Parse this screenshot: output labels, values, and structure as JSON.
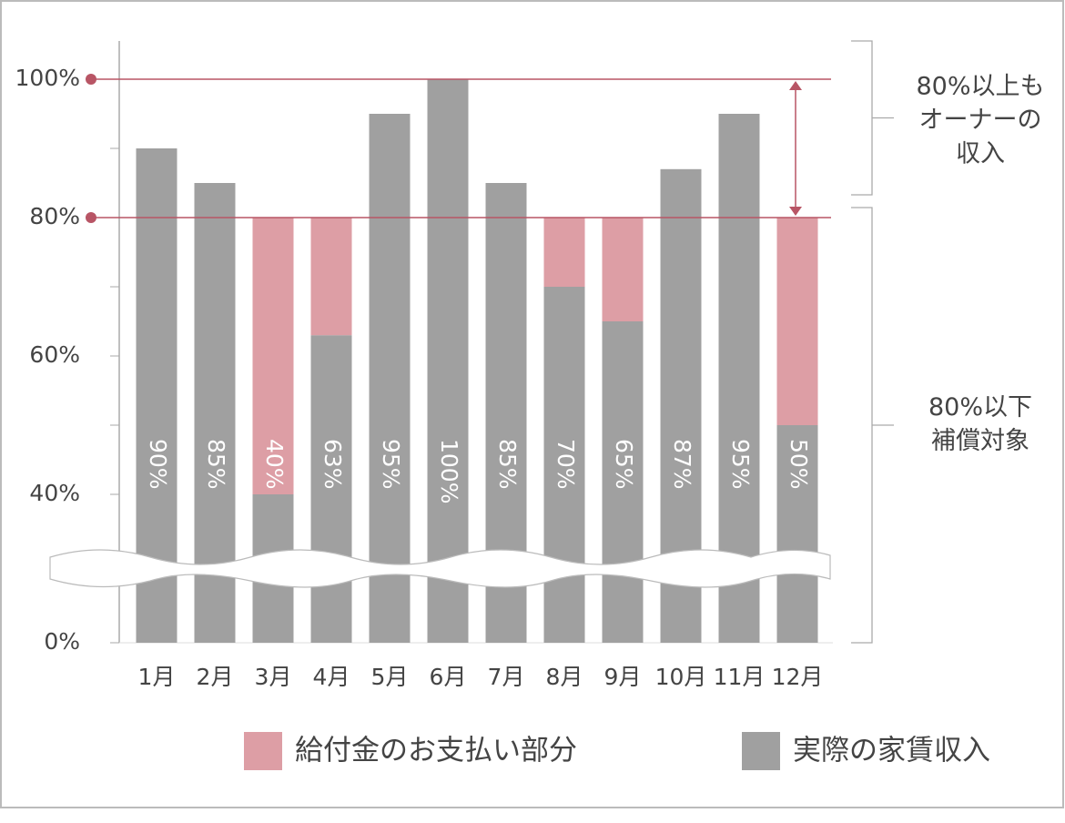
{
  "chart_data": {
    "type": "stacked_bar",
    "categories": [
      "1月",
      "2月",
      "3月",
      "4月",
      "5月",
      "6月",
      "7月",
      "8月",
      "9月",
      "10月",
      "11月",
      "12月"
    ],
    "series": [
      {
        "name": "給付金のお支払い部分",
        "color": "#dd9ea5",
        "values": [
          null,
          null,
          40,
          17,
          null,
          null,
          null,
          10,
          15,
          null,
          null,
          30
        ]
      },
      {
        "name": "実際の家賃収入",
        "color": "#a0a0a0",
        "values": [
          90,
          85,
          40,
          63,
          95,
          100,
          85,
          70,
          65,
          87,
          95,
          50
        ],
        "value_labels": [
          "90%",
          "85%",
          "40%",
          "63%",
          "95%",
          "100%",
          "85%",
          "70%",
          "65%",
          "87%",
          "95%",
          "50%"
        ]
      }
    ],
    "ylim": [
      0,
      100
    ],
    "y_break": [
      0,
      40
    ],
    "yticks": [
      {
        "value": 0,
        "label": "0%"
      },
      {
        "value": 40,
        "label": "40%"
      },
      {
        "value": 60,
        "label": "60%"
      },
      {
        "value": 80,
        "label": "80%"
      },
      {
        "value": 100,
        "label": "100%"
      }
    ],
    "minor_yticks": [
      50,
      70,
      90
    ],
    "reference_lines": [
      80,
      100
    ],
    "reference_color": "#b85565",
    "annotations": [
      {
        "lines": [
          "80%以上も",
          "オーナーの",
          "収入"
        ],
        "range": [
          80,
          100
        ]
      },
      {
        "lines": [
          "80%以下",
          "補償対象"
        ],
        "range": [
          0,
          80
        ]
      }
    ],
    "legend": "bottom"
  }
}
